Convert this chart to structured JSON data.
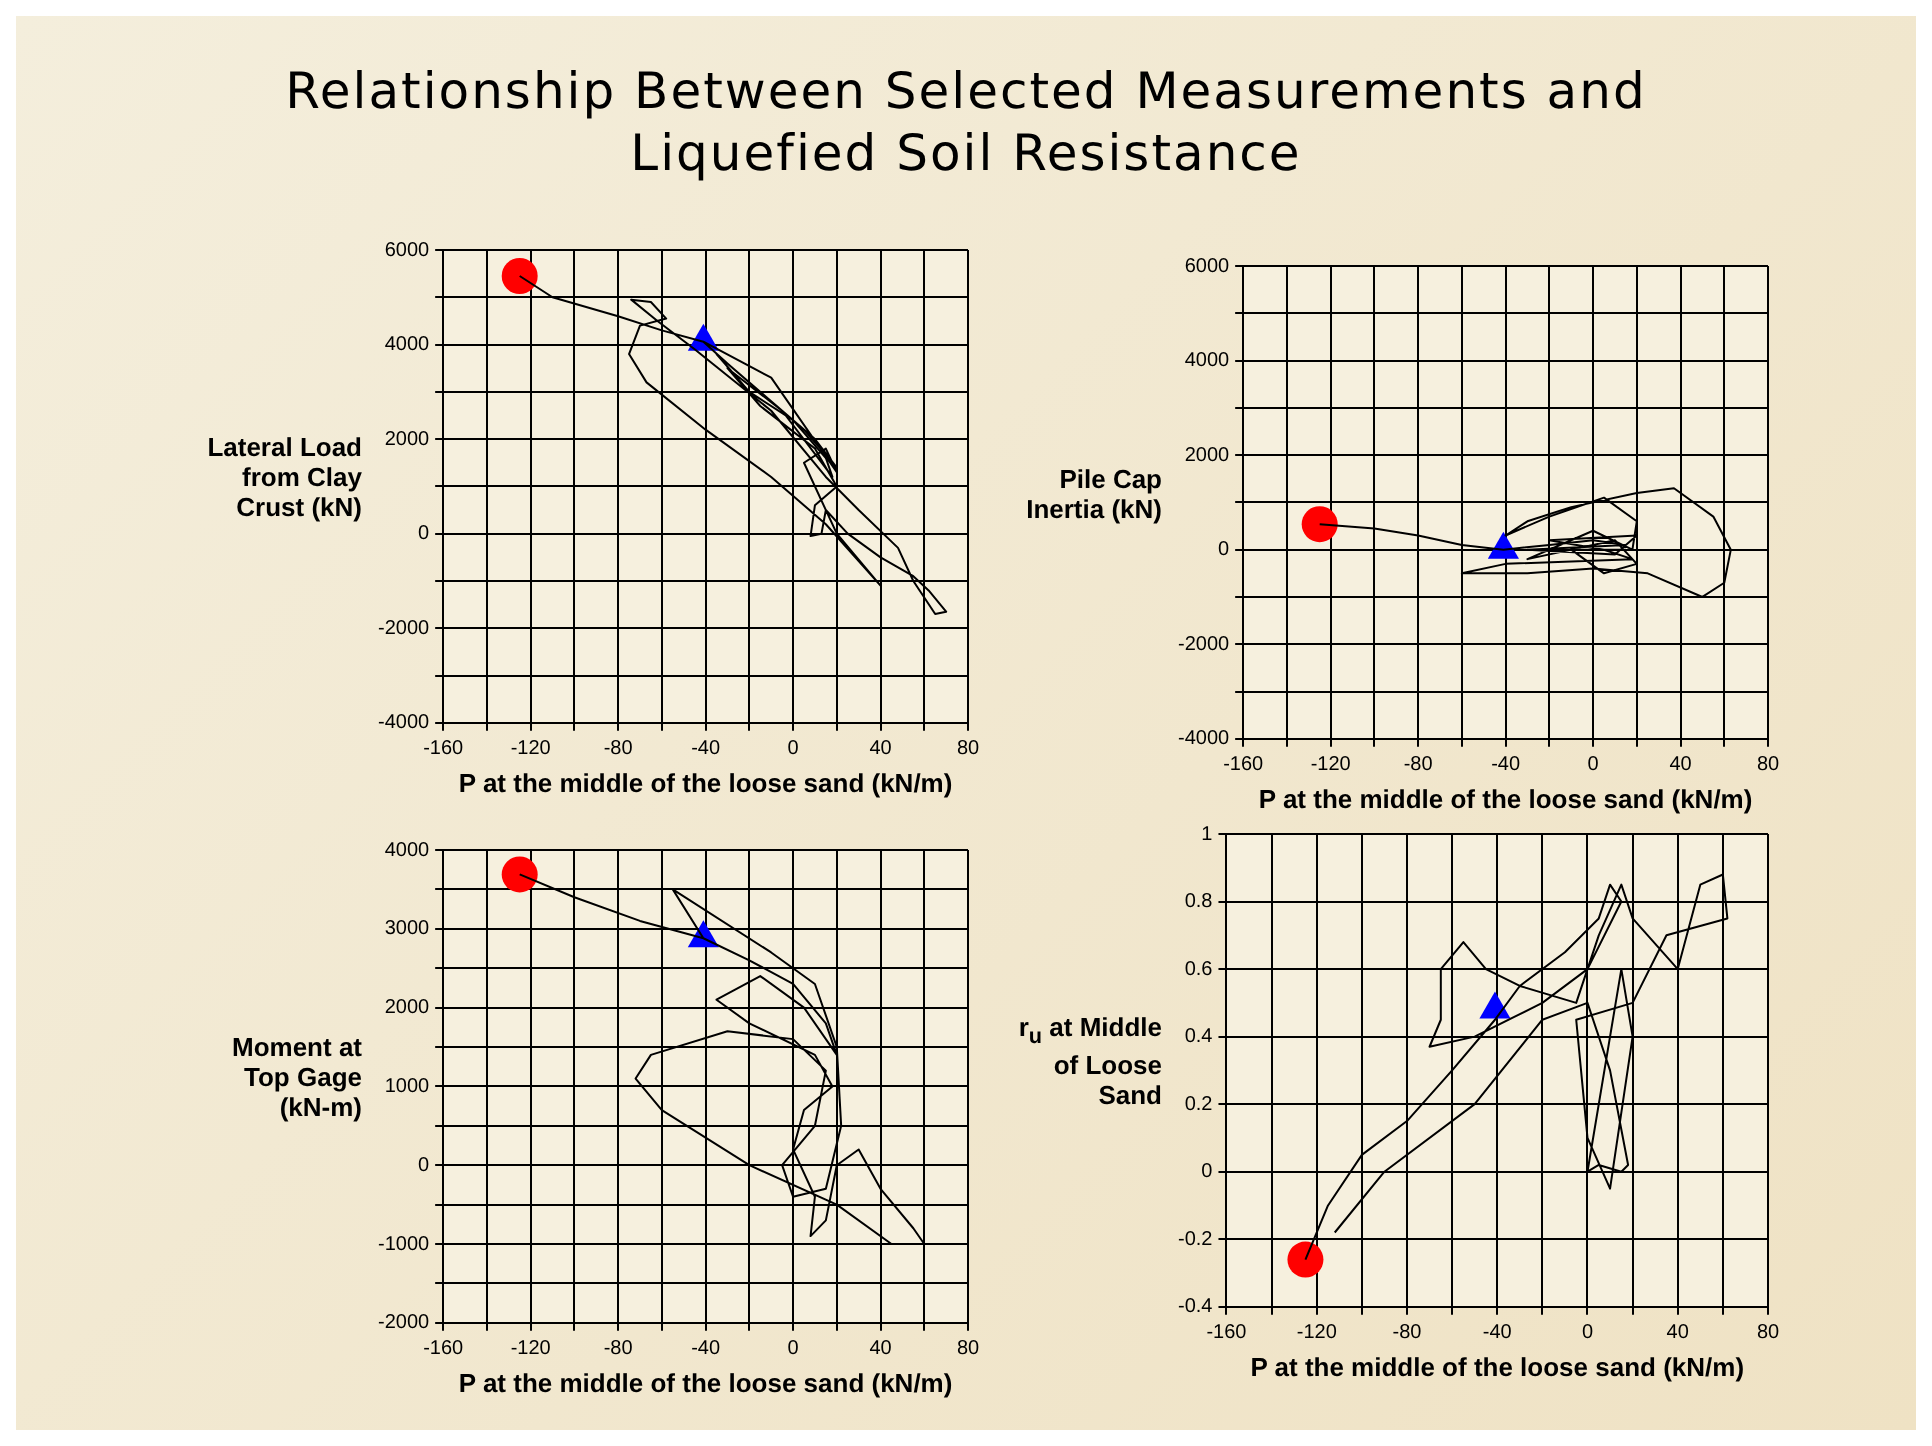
{
  "chart_data": [
    {
      "type": "line",
      "title": "Relationship Between Selected Measurements and Liquefied Soil Resistance",
      "xlabel": "P at the middle of the loose sand (kN/m)",
      "ylabel": "Lateral Load from Clay Crust (kN)",
      "xlim": [
        -160,
        80
      ],
      "ylim": [
        -4000,
        6000
      ],
      "grid": true,
      "xticks": [
        -160,
        {
          "value": -140,
          "label": null
        },
        -120,
        {
          "value": -100,
          "label": null
        },
        -80,
        {
          "value": -60,
          "label": null
        },
        -40,
        {
          "value": -20,
          "label": null
        },
        0,
        {
          "value": 20,
          "label": null
        },
        40,
        {
          "value": 60,
          "label": null
        },
        80
      ],
      "yticks": [
        -4000,
        {
          "value": -3000,
          "label": null
        },
        -2000,
        {
          "value": -1000,
          "label": null
        },
        0,
        {
          "value": 1000,
          "label": null
        },
        2000,
        {
          "value": 3000,
          "label": null
        },
        4000,
        {
          "value": 5000,
          "label": null
        },
        6000
      ],
      "series": [
        {
          "marker": "none",
          "color": "#000000",
          "x": [
            -125,
            -110,
            -80,
            -60,
            -41,
            -30,
            -10,
            10,
            20,
            5,
            -20,
            -35,
            -20,
            0,
            15,
            18,
            -5,
            -30,
            -15,
            10,
            20,
            10,
            8,
            13,
            15,
            25,
            40,
            55,
            62,
            70,
            65,
            55,
            48,
            30,
            15,
            -10,
            -45,
            -62,
            -74,
            -65,
            -58,
            -70,
            -75,
            -67,
            -40,
            -10,
            15,
            40,
            20,
            5,
            15,
            20,
            -10,
            -41
          ],
          "values": [
            5450,
            5000,
            4600,
            4300,
            4060,
            3600,
            2800,
            2000,
            1400,
            2200,
            3200,
            3800,
            3000,
            2400,
            1600,
            1200,
            2600,
            3500,
            2700,
            1800,
            1000,
            600,
            -50,
            0,
            500,
            0,
            -500,
            -900,
            -1200,
            -1650,
            -1700,
            -1000,
            -300,
            500,
            1200,
            2600,
            3900,
            4500,
            4950,
            4900,
            4550,
            4400,
            3800,
            3200,
            2200,
            1200,
            200,
            -1100,
            0,
            1500,
            1800,
            1300,
            3300,
            4060
          ]
        },
        {
          "type": "scatter",
          "marker": "circle",
          "color": "#ff0000",
          "x": [
            -125
          ],
          "values": [
            5450
          ]
        },
        {
          "type": "scatter",
          "marker": "triangle",
          "color": "#0000ff",
          "x": [
            -41
          ],
          "values": [
            4060
          ]
        }
      ]
    },
    {
      "type": "line",
      "xlabel": "P at the middle of the loose sand (kN/m)",
      "ylabel": "Pile Cap Inertia (kN)",
      "xlim": [
        -160,
        80
      ],
      "ylim": [
        -4000,
        6000
      ],
      "grid": true,
      "xticks": [
        -160,
        {
          "value": -140,
          "label": null
        },
        -120,
        {
          "value": -100,
          "label": null
        },
        -80,
        {
          "value": -60,
          "label": null
        },
        -40,
        {
          "value": -20,
          "label": null
        },
        0,
        {
          "value": 20,
          "label": null
        },
        40,
        {
          "value": 60,
          "label": null
        },
        80
      ],
      "yticks": [
        -4000,
        {
          "value": -3000,
          "label": null
        },
        -2000,
        {
          "value": -1000,
          "label": null
        },
        0,
        {
          "value": 1000,
          "label": null
        },
        2000,
        {
          "value": 3000,
          "label": null
        },
        4000,
        {
          "value": 5000,
          "label": null
        },
        6000
      ],
      "series": [
        {
          "marker": "none",
          "color": "#000000",
          "x": [
            -125,
            -100,
            -80,
            -60,
            -41,
            -20,
            0,
            15,
            -30,
            10,
            20,
            -20,
            5,
            18,
            -40,
            -60,
            -30,
            0,
            25,
            50,
            60,
            63,
            55,
            37,
            20,
            -10,
            -30,
            -40,
            -20,
            5,
            20,
            18,
            0,
            -30,
            10,
            20,
            5,
            -10,
            15
          ],
          "values": [
            540,
            450,
            300,
            100,
            0,
            100,
            200,
            100,
            0,
            -100,
            300,
            200,
            0,
            -200,
            -300,
            -500,
            -500,
            -400,
            -500,
            -1000,
            -700,
            0,
            700,
            1300,
            1200,
            900,
            600,
            300,
            700,
            1100,
            600,
            0,
            400,
            -200,
            200,
            -300,
            -500,
            0,
            0
          ]
        },
        {
          "type": "scatter",
          "marker": "circle",
          "color": "#ff0000",
          "x": [
            -125
          ],
          "values": [
            540
          ]
        },
        {
          "type": "scatter",
          "marker": "triangle",
          "color": "#0000ff",
          "x": [
            -41
          ],
          "values": [
            0
          ]
        }
      ]
    },
    {
      "type": "line",
      "xlabel": "P at the middle of the loose sand (kN/m)",
      "ylabel": "Moment at Top Gage (kN-m)",
      "xlim": [
        -160,
        80
      ],
      "ylim": [
        -2000,
        4000
      ],
      "grid": true,
      "xticks": [
        -160,
        {
          "value": -140,
          "label": null
        },
        -120,
        {
          "value": -100,
          "label": null
        },
        -80,
        {
          "value": -60,
          "label": null
        },
        -40,
        {
          "value": -20,
          "label": null
        },
        0,
        {
          "value": 20,
          "label": null
        },
        40,
        {
          "value": 60,
          "label": null
        },
        80
      ],
      "yticks": [
        -2000,
        {
          "value": -1500,
          "label": null
        },
        -1000,
        {
          "value": -500,
          "label": null
        },
        0,
        {
          "value": 500,
          "label": null
        },
        1000,
        {
          "value": 1500,
          "label": null
        },
        2000,
        {
          "value": 2500,
          "label": null
        },
        3000,
        {
          "value": 3500,
          "label": null
        },
        4000
      ],
      "series": [
        {
          "marker": "none",
          "color": "#000000",
          "x": [
            -125,
            -100,
            -70,
            -41,
            -20,
            0,
            15,
            20,
            5,
            -15,
            -35,
            -20,
            10,
            18,
            5,
            0,
            10,
            8,
            15,
            20,
            30,
            40,
            55,
            60,
            45,
            20,
            -20,
            -60,
            -72,
            -65,
            -30,
            0,
            15,
            10,
            -5,
            0,
            15,
            22,
            20,
            10,
            -10,
            -55,
            -41
          ],
          "values": [
            3690,
            3400,
            3100,
            2880,
            2600,
            2300,
            1800,
            1400,
            2000,
            2400,
            2100,
            1800,
            1400,
            1000,
            700,
            200,
            -400,
            -900,
            -700,
            0,
            200,
            -300,
            -800,
            -1000,
            -1000,
            -500,
            0,
            700,
            1100,
            1400,
            1700,
            1600,
            1200,
            500,
            0,
            -400,
            -300,
            500,
            1500,
            2300,
            2700,
            3500,
            2880
          ]
        },
        {
          "type": "scatter",
          "marker": "circle",
          "color": "#ff0000",
          "x": [
            -125
          ],
          "values": [
            3690
          ]
        },
        {
          "type": "scatter",
          "marker": "triangle",
          "color": "#0000ff",
          "x": [
            -41
          ],
          "values": [
            2880
          ]
        }
      ]
    },
    {
      "type": "line",
      "xlabel": "P at the middle of the loose sand (kN/m)",
      "ylabel": "r$_{u}$ at Middle of Loose Sand",
      "xlim": [
        -160,
        80
      ],
      "ylim": [
        -0.4,
        1
      ],
      "grid": true,
      "xticks": [
        -160,
        {
          "value": -140,
          "label": null
        },
        -120,
        {
          "value": -100,
          "label": null
        },
        -80,
        {
          "value": -60,
          "label": null
        },
        -40,
        {
          "value": -20,
          "label": null
        },
        0,
        {
          "value": 20,
          "label": null
        },
        40,
        {
          "value": 60,
          "label": null
        },
        80
      ],
      "yticks": [
        -0.4,
        -0.2,
        0,
        0.2,
        0.4,
        0.6,
        0.8,
        1
      ],
      "series": [
        {
          "marker": "none",
          "color": "#000000",
          "x": [
            -125,
            -115,
            -100,
            -80,
            -60,
            -41,
            -30,
            -10,
            5,
            10,
            15,
            0,
            -20,
            -50,
            -70,
            -65,
            -65,
            -55,
            -45,
            -30,
            -5,
            5,
            15,
            20,
            40,
            50,
            60,
            62,
            35,
            20,
            -5,
            0,
            10,
            20,
            15,
            0,
            5,
            15,
            18,
            10,
            0,
            -20,
            -50,
            -90,
            -112
          ],
          "values": [
            -0.26,
            -0.1,
            0.05,
            0.15,
            0.3,
            0.45,
            0.55,
            0.65,
            0.75,
            0.85,
            0.8,
            0.6,
            0.5,
            0.4,
            0.37,
            0.45,
            0.6,
            0.68,
            0.6,
            0.55,
            0.5,
            0.7,
            0.85,
            0.75,
            0.6,
            0.85,
            0.88,
            0.75,
            0.7,
            0.5,
            0.45,
            0.1,
            -0.05,
            0.4,
            0.6,
            0.0,
            0.02,
            0.0,
            0.02,
            0.3,
            0.5,
            0.45,
            0.2,
            0.0,
            -0.18
          ]
        },
        {
          "type": "scatter",
          "marker": "circle",
          "color": "#ff0000",
          "x": [
            -125
          ],
          "values": [
            -0.26
          ]
        },
        {
          "type": "scatter",
          "marker": "triangle",
          "color": "#0000ff",
          "x": [
            -41
          ],
          "values": [
            0.48
          ]
        }
      ]
    }
  ]
}
